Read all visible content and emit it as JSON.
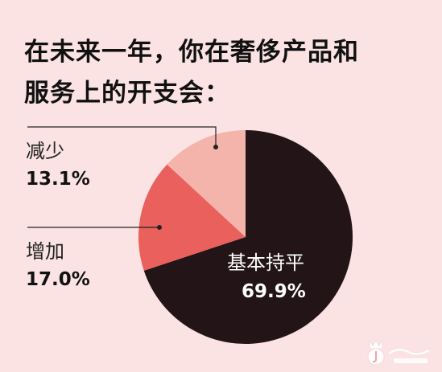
{
  "title": {
    "line1": "在未来一年，你在奢侈产品和",
    "line2": "服务上的开支会："
  },
  "chart_data": {
    "type": "pie",
    "title": "在未来一年，你在奢侈产品和服务上的开支会：",
    "slices": [
      {
        "label": "基本持平",
        "value": 69.9,
        "value_label": "69.9%",
        "color": "#231417"
      },
      {
        "label": "增加",
        "value": 17.0,
        "value_label": "17.0%",
        "color": "#e9605c"
      },
      {
        "label": "减少",
        "value": 13.1,
        "value_label": "13.1%",
        "color": "#f4b4ab"
      }
    ],
    "start": "12 o'clock",
    "direction": "clockwise",
    "legend": "none"
  },
  "watermark": {
    "logo": "JoinSnYi logo"
  }
}
